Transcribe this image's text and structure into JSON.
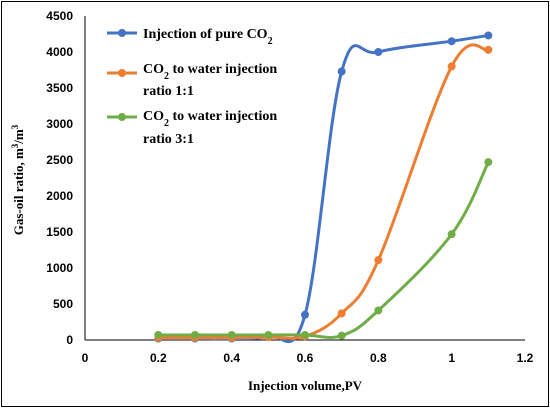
{
  "chart_data": {
    "type": "line",
    "xlabel": "Injection volume,PV",
    "ylabel": "Gas-oil ratio, m³/m³",
    "xlim": [
      0,
      1.2
    ],
    "ylim": [
      0,
      4500
    ],
    "xticks": [
      "0",
      "0.2",
      "0.4",
      "0.6",
      "0.8",
      "1",
      "1.2"
    ],
    "yticks": [
      "0",
      "500",
      "1000",
      "1500",
      "2000",
      "2500",
      "3000",
      "3500",
      "4000",
      "4500"
    ],
    "grid": false,
    "legend_position": "top-center",
    "series": [
      {
        "name": "Injection of pure CO₂",
        "color": "#4472C4",
        "x": [
          0.2,
          0.3,
          0.4,
          0.5,
          0.6,
          0.7,
          0.8,
          1.0,
          1.1
        ],
        "y": [
          20,
          20,
          20,
          60,
          350,
          3730,
          4000,
          4150,
          4230
        ]
      },
      {
        "name": "CO₂ to water injection ratio 1:1",
        "color": "#ED7D31",
        "x": [
          0.2,
          0.3,
          0.4,
          0.5,
          0.6,
          0.7,
          0.8,
          1.0,
          1.1
        ],
        "y": [
          30,
          30,
          30,
          40,
          50,
          370,
          1110,
          3800,
          4030
        ]
      },
      {
        "name": "CO₂ to water injection ratio 3:1",
        "color": "#70AD47",
        "x": [
          0.2,
          0.3,
          0.4,
          0.5,
          0.6,
          0.7,
          0.8,
          1.0,
          1.1
        ],
        "y": [
          70,
          70,
          70,
          70,
          70,
          60,
          410,
          1470,
          2470
        ]
      }
    ]
  },
  "legend": {
    "s1": {
      "line1_pre": "Injection of pure CO",
      "sub": "2"
    },
    "s2": {
      "line1_pre": "CO",
      "sub": "2",
      "line1_post": " to water injection",
      "line2": "ratio 1:1"
    },
    "s3": {
      "line1_pre": "CO",
      "sub": "2",
      "line1_post": " to water injection",
      "line2": "ratio 3:1"
    }
  },
  "ylabel_parts": {
    "main": "Gas-oil ratio, m",
    "sup1": "3",
    "mid": "/m",
    "sup2": "3"
  }
}
